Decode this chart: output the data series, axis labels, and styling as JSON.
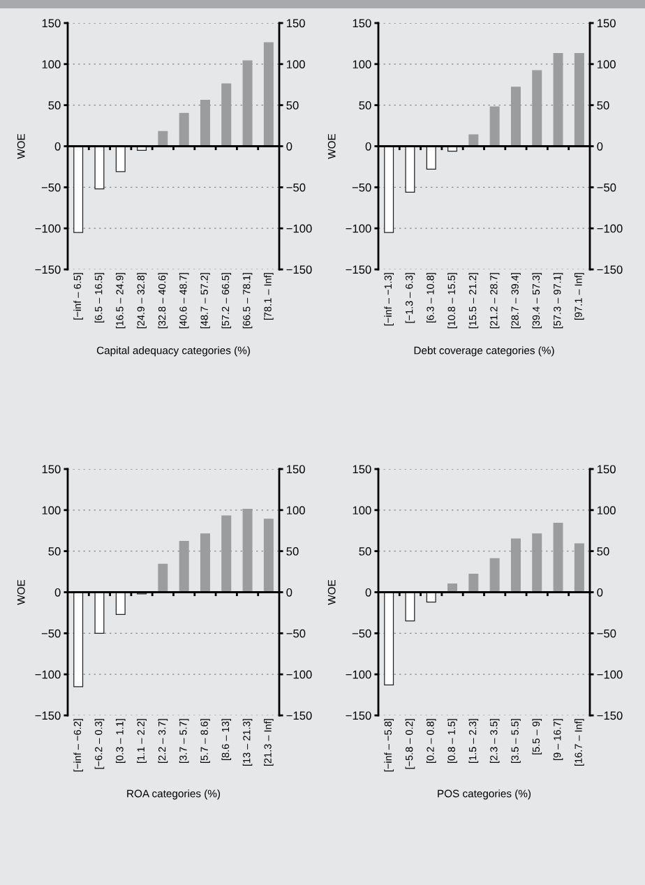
{
  "chart_data": [
    {
      "type": "bar",
      "xlabel": "Capital adequacy categories (%)",
      "ylabel": "WOE",
      "grid": "y",
      "categories": [
        "[−inf – 6.5]",
        "[6.5 – 16.5]",
        "[16.5 – 24.9]",
        "[24.9 – 32.8]",
        "[32.8 – 40.6]",
        "[40.6 – 48.7]",
        "[48.7 – 57.2]",
        "[57.2 – 66.5]",
        "[66.5 – 78.1]",
        "[78.1 – Inf]"
      ],
      "values": [
        -105,
        -52,
        -31,
        -5,
        18,
        40,
        56,
        76,
        104,
        126
      ],
      "colors": [
        "#ffffff",
        "#ffffff",
        "#ffffff",
        "#ffffff",
        "#9a9c9d",
        "#9a9c9d",
        "#9a9c9d",
        "#9a9c9d",
        "#9a9c9d",
        "#9a9c9d"
      ],
      "ylim": [
        -150,
        150
      ],
      "yticks": [
        {
          "value": -150,
          "label": "−150"
        },
        {
          "value": -100,
          "label": "−100"
        },
        {
          "value": -50,
          "label": "−50"
        },
        0,
        50,
        100,
        150
      ],
      "y2lim": [
        -150,
        150
      ],
      "y2ticks": [
        {
          "value": -150,
          "label": "−150"
        },
        {
          "value": -100,
          "label": "−100"
        },
        {
          "value": -50,
          "label": "−50"
        },
        0,
        50,
        100,
        150
      ]
    },
    {
      "type": "bar",
      "xlabel": "Debt coverage categories (%)",
      "ylabel": "WOE",
      "grid": "y",
      "categories": [
        "[−inf – −1.3]",
        "[−1.3 – 6.3]",
        "[6.3 – 10.8]",
        "[10.8 – 15.5]",
        "[15.5 – 21.2]",
        "[21.2 – 28.7]",
        "[28.7 – 39.4]",
        "[39.4 – 57.3]",
        "[57.3 – 97.1]",
        "[97.1 – Inf]"
      ],
      "values": [
        -105,
        -56,
        -28,
        -6,
        14,
        48,
        72,
        92,
        113,
        113
      ],
      "colors": [
        "#ffffff",
        "#ffffff",
        "#ffffff",
        "#ffffff",
        "#9a9c9d",
        "#9a9c9d",
        "#9a9c9d",
        "#9a9c9d",
        "#9a9c9d",
        "#9a9c9d"
      ],
      "ylim": [
        -150,
        150
      ],
      "yticks": [
        {
          "value": -150,
          "label": "−150"
        },
        {
          "value": -100,
          "label": "−100"
        },
        {
          "value": -50,
          "label": "−50"
        },
        0,
        50,
        100,
        150
      ],
      "y2lim": [
        -150,
        150
      ],
      "y2ticks": [
        {
          "value": -150,
          "label": "−150"
        },
        {
          "value": -100,
          "label": "−100"
        },
        {
          "value": -50,
          "label": "−50"
        },
        0,
        50,
        100,
        150
      ]
    },
    {
      "type": "bar",
      "xlabel": "ROA categories (%)",
      "ylabel": "WOE",
      "grid": "y",
      "categories": [
        "[−inf – −6.2]",
        "[−6.2 – 0.3]",
        "[0.3 – 1.1]",
        "[1.1 – 2.2]",
        "[2.2 – 3.7]",
        "[3.7 – 5.7]",
        "[5.7 – 8.6]",
        "[8.6 – 13]",
        "[13 – 21.3]",
        "[21.3 – Inf]"
      ],
      "values": [
        -115,
        -50,
        -27,
        -2,
        34,
        62,
        71,
        93,
        101,
        89
      ],
      "colors": [
        "#ffffff",
        "#ffffff",
        "#ffffff",
        "#ffffff",
        "#9a9c9d",
        "#9a9c9d",
        "#9a9c9d",
        "#9a9c9d",
        "#9a9c9d",
        "#9a9c9d"
      ],
      "ylim": [
        -150,
        150
      ],
      "yticks": [
        {
          "value": -150,
          "label": "−150"
        },
        {
          "value": -100,
          "label": "−100"
        },
        {
          "value": -50,
          "label": "−50"
        },
        0,
        50,
        100,
        150
      ],
      "y2lim": [
        -150,
        150
      ],
      "y2ticks": [
        {
          "value": -150,
          "label": "−150"
        },
        {
          "value": -100,
          "label": "−100"
        },
        {
          "value": -50,
          "label": "−50"
        },
        0,
        50,
        100,
        150
      ]
    },
    {
      "type": "bar",
      "xlabel": "POS categories (%)",
      "ylabel": "WOE",
      "grid": "y",
      "categories": [
        "[−inf – −5.8]",
        "[−5.8 – 0.2]",
        "[0.2 – 0.8]",
        "[0.8 – 1.5]",
        "[1.5 – 2.3]",
        "[2.3 – 3.5]",
        "[3.5 – 5.5]",
        "[5.5 – 9]",
        "[9 – 16.7]",
        "[16.7 – Inf]"
      ],
      "values": [
        -113,
        -35,
        -12,
        10,
        22,
        41,
        65,
        71,
        84,
        59
      ],
      "colors": [
        "#ffffff",
        "#ffffff",
        "#ffffff",
        "#9a9c9d",
        "#9a9c9d",
        "#9a9c9d",
        "#9a9c9d",
        "#9a9c9d",
        "#9a9c9d",
        "#9a9c9d"
      ],
      "ylim": [
        -150,
        150
      ],
      "yticks": [
        {
          "value": -150,
          "label": "−150"
        },
        {
          "value": -100,
          "label": "−100"
        },
        {
          "value": -50,
          "label": "−50"
        },
        0,
        50,
        100,
        150
      ],
      "y2lim": [
        -150,
        150
      ],
      "y2ticks": [
        {
          "value": -150,
          "label": "−150"
        },
        {
          "value": -100,
          "label": "−100"
        },
        {
          "value": -50,
          "label": "−50"
        },
        0,
        50,
        100,
        150
      ]
    }
  ]
}
